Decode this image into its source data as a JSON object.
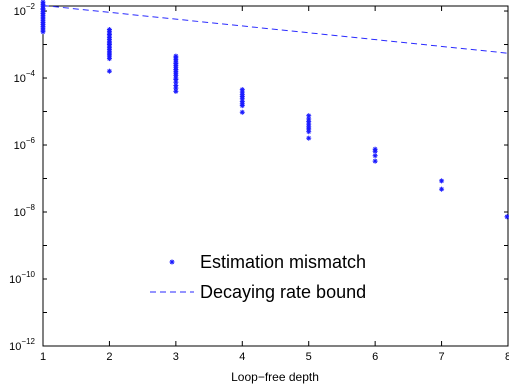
{
  "chart_data": {
    "type": "scatter",
    "xlabel": "Loop−free depth",
    "ylabel": "",
    "title": "",
    "xlim": [
      1,
      8
    ],
    "ylim_log10": [
      -12,
      -1.85
    ],
    "yscale": "log",
    "grid": false,
    "legend_position": "lower-center",
    "x_ticks": [
      1,
      2,
      3,
      4,
      5,
      6,
      7,
      8
    ],
    "y_ticks": [
      {
        "base": "10",
        "exp": "−12",
        "log10": -12
      },
      {
        "base": "10",
        "exp": "−10",
        "log10": -10
      },
      {
        "base": "10",
        "exp": "−8",
        "log10": -8
      },
      {
        "base": "10",
        "exp": "−6",
        "log10": -6
      },
      {
        "base": "10",
        "exp": "−4",
        "log10": -4
      },
      {
        "base": "10",
        "exp": "−2",
        "log10": -2
      }
    ],
    "marker_color": "#1a1aff",
    "line_color": "#2a2aff",
    "series": [
      {
        "name": "Estimation mismatch",
        "kind": "scatter",
        "points": [
          [
            1,
            0.0185
          ],
          [
            1,
            0.016
          ],
          [
            1,
            0.014
          ],
          [
            1,
            0.012
          ],
          [
            1,
            0.011
          ],
          [
            1,
            0.0095
          ],
          [
            1,
            0.0085
          ],
          [
            1,
            0.0075
          ],
          [
            1,
            0.0066
          ],
          [
            1,
            0.0058
          ],
          [
            1,
            0.0051
          ],
          [
            1,
            0.0045
          ],
          [
            1,
            0.004
          ],
          [
            1,
            0.0035
          ],
          [
            1,
            0.0031
          ],
          [
            1,
            0.0027
          ],
          [
            1,
            0.0024
          ],
          [
            2,
            0.0028
          ],
          [
            2,
            0.0025
          ],
          [
            2,
            0.0022
          ],
          [
            2,
            0.002
          ],
          [
            2,
            0.0018
          ],
          [
            2,
            0.0016
          ],
          [
            2,
            0.0014
          ],
          [
            2,
            0.0012
          ],
          [
            2,
            0.0011
          ],
          [
            2,
            0.001
          ],
          [
            2,
            0.0009
          ],
          [
            2,
            0.0008
          ],
          [
            2,
            0.0007
          ],
          [
            2,
            0.0006
          ],
          [
            2,
            0.00052
          ],
          [
            2,
            0.00045
          ],
          [
            2,
            0.00038
          ],
          [
            2,
            0.00016
          ],
          [
            3,
            0.00045
          ],
          [
            3,
            0.0004
          ],
          [
            3,
            0.00035
          ],
          [
            3,
            0.0003
          ],
          [
            3,
            0.00027
          ],
          [
            3,
            0.00024
          ],
          [
            3,
            0.00021
          ],
          [
            3,
            0.00018
          ],
          [
            3,
            0.00016
          ],
          [
            3,
            0.00014
          ],
          [
            3,
            0.00012
          ],
          [
            3,
            0.0001
          ],
          [
            3,
            9e-05
          ],
          [
            3,
            7.5e-05
          ],
          [
            3,
            6e-05
          ],
          [
            3,
            5e-05
          ],
          [
            3,
            4e-05
          ],
          [
            4,
            4.5e-05
          ],
          [
            4,
            3.8e-05
          ],
          [
            4,
            3.2e-05
          ],
          [
            4,
            2.8e-05
          ],
          [
            4,
            2.4e-05
          ],
          [
            4,
            2e-05
          ],
          [
            4,
            1.7e-05
          ],
          [
            4,
            1.5e-05
          ],
          [
            4,
            9.5e-06
          ],
          [
            5,
            7.5e-06
          ],
          [
            5,
            6e-06
          ],
          [
            5,
            5e-06
          ],
          [
            5,
            4.2e-06
          ],
          [
            5,
            3.5e-06
          ],
          [
            5,
            3e-06
          ],
          [
            5,
            2.5e-06
          ],
          [
            5,
            1.6e-06
          ],
          [
            6,
            7.5e-07
          ],
          [
            6,
            6.5e-07
          ],
          [
            6,
            4.8e-07
          ],
          [
            6,
            3.3e-07
          ],
          [
            7,
            8.5e-08
          ],
          [
            7,
            4.8e-08
          ],
          [
            8,
            7.2e-09
          ]
        ]
      },
      {
        "name": "Decaying rate bound",
        "kind": "line",
        "style": "dashed",
        "x": [
          1,
          8
        ],
        "y": [
          0.0146,
          0.00055
        ]
      }
    ]
  }
}
